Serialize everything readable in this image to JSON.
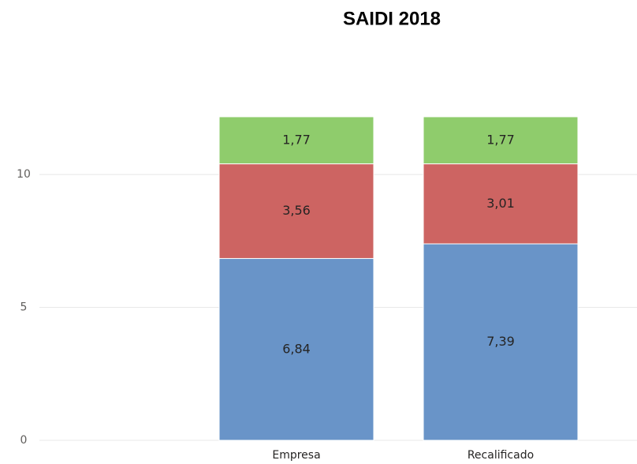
{
  "chart_data": {
    "type": "stacked_bar",
    "title": "SAIDI 2018",
    "categories": [
      "Empresa",
      "Recalificado"
    ],
    "series": [
      {
        "color": "#6994c8",
        "values": [
          6.84,
          7.39
        ],
        "value_labels": [
          "6,84",
          "7,39"
        ]
      },
      {
        "color": "#cd6462",
        "values": [
          3.56,
          3.01
        ],
        "value_labels": [
          "3,56",
          "3,01"
        ]
      },
      {
        "color": "#8fcc6c",
        "values": [
          1.77,
          1.77
        ],
        "value_labels": [
          "1,77",
          "1,77"
        ]
      }
    ],
    "ylim": [
      0,
      13
    ],
    "yticks": [
      0,
      5,
      10
    ],
    "grid": true
  }
}
